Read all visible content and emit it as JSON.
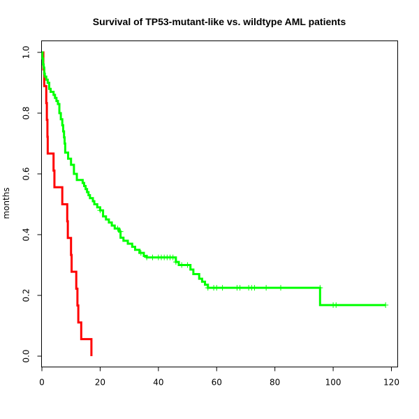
{
  "chart_data": {
    "type": "line",
    "title": "Survival of TP53-mutant-like vs. wildtype AML patients",
    "xlabel": "",
    "ylabel": "months",
    "xlim": [
      0,
      120
    ],
    "ylim": [
      0,
      1
    ],
    "xticks": [
      0,
      20,
      40,
      60,
      80,
      100,
      120
    ],
    "yticks": [
      0.0,
      0.2,
      0.4,
      0.6,
      0.8,
      1.0
    ],
    "xtick_labels": [
      "0",
      "20",
      "40",
      "60",
      "80",
      "100",
      "120"
    ],
    "ytick_labels": [
      "0.0",
      "0.2",
      "0.4",
      "0.6",
      "0.8",
      "1.0"
    ],
    "grid": false,
    "legend": false,
    "series": [
      {
        "color": "#ff0000",
        "step": [
          [
            0,
            1.0
          ],
          [
            0.5,
            0.944
          ],
          [
            0.8,
            0.889
          ],
          [
            1.5,
            0.833
          ],
          [
            1.7,
            0.778
          ],
          [
            1.9,
            0.722
          ],
          [
            2.0,
            0.667
          ],
          [
            4.0,
            0.611
          ],
          [
            4.3,
            0.556
          ],
          [
            7.0,
            0.5
          ],
          [
            8.7,
            0.444
          ],
          [
            8.9,
            0.389
          ],
          [
            10.0,
            0.333
          ],
          [
            10.2,
            0.278
          ],
          [
            11.8,
            0.222
          ],
          [
            12.2,
            0.167
          ],
          [
            12.5,
            0.111
          ],
          [
            13.5,
            0.056
          ],
          [
            17.0,
            0.0
          ]
        ],
        "end_x": 17.0,
        "censor": []
      },
      {
        "color": "#00ff00",
        "step": [
          [
            0,
            1.0
          ],
          [
            0.2,
            0.98
          ],
          [
            0.4,
            0.96
          ],
          [
            0.6,
            0.95
          ],
          [
            0.8,
            0.93
          ],
          [
            1.0,
            0.92
          ],
          [
            1.5,
            0.91
          ],
          [
            2.0,
            0.9
          ],
          [
            2.5,
            0.88
          ],
          [
            3.0,
            0.87
          ],
          [
            4.0,
            0.86
          ],
          [
            4.5,
            0.85
          ],
          [
            5.0,
            0.84
          ],
          [
            5.5,
            0.83
          ],
          [
            6.0,
            0.8
          ],
          [
            6.5,
            0.78
          ],
          [
            7.0,
            0.76
          ],
          [
            7.3,
            0.74
          ],
          [
            7.6,
            0.72
          ],
          [
            7.8,
            0.7
          ],
          [
            8.0,
            0.67
          ],
          [
            9.0,
            0.65
          ],
          [
            10.0,
            0.63
          ],
          [
            11.0,
            0.6
          ],
          [
            12.0,
            0.58
          ],
          [
            14.0,
            0.57
          ],
          [
            14.5,
            0.56
          ],
          [
            15.0,
            0.55
          ],
          [
            15.5,
            0.54
          ],
          [
            16.0,
            0.53
          ],
          [
            16.5,
            0.52
          ],
          [
            17.5,
            0.51
          ],
          [
            18.0,
            0.5
          ],
          [
            19.0,
            0.49
          ],
          [
            20.0,
            0.48
          ],
          [
            21.0,
            0.46
          ],
          [
            22.0,
            0.45
          ],
          [
            23.0,
            0.44
          ],
          [
            24.0,
            0.43
          ],
          [
            25.0,
            0.42
          ],
          [
            26.5,
            0.41
          ],
          [
            27.0,
            0.39
          ],
          [
            28.0,
            0.38
          ],
          [
            29.5,
            0.37
          ],
          [
            31.0,
            0.36
          ],
          [
            32.0,
            0.35
          ],
          [
            33.5,
            0.34
          ],
          [
            35.0,
            0.33
          ],
          [
            36.0,
            0.325
          ],
          [
            46.0,
            0.31
          ],
          [
            47.0,
            0.3
          ],
          [
            51.0,
            0.285
          ],
          [
            52.0,
            0.27
          ],
          [
            54.0,
            0.255
          ],
          [
            55.0,
            0.245
          ],
          [
            56.0,
            0.235
          ],
          [
            57.0,
            0.225
          ],
          [
            95.5,
            0.168
          ]
        ],
        "end_x": 118.0,
        "censor": [
          [
            20,
            0.48
          ],
          [
            26,
            0.42
          ],
          [
            27,
            0.41
          ],
          [
            34,
            0.34
          ],
          [
            36,
            0.325
          ],
          [
            38,
            0.325
          ],
          [
            40,
            0.325
          ],
          [
            41,
            0.325
          ],
          [
            42,
            0.325
          ],
          [
            43,
            0.325
          ],
          [
            44,
            0.325
          ],
          [
            45,
            0.325
          ],
          [
            46,
            0.31
          ],
          [
            48,
            0.3
          ],
          [
            50,
            0.3
          ],
          [
            57,
            0.225
          ],
          [
            59,
            0.225
          ],
          [
            60,
            0.225
          ],
          [
            62,
            0.225
          ],
          [
            67,
            0.225
          ],
          [
            68,
            0.225
          ],
          [
            71,
            0.225
          ],
          [
            72,
            0.225
          ],
          [
            73,
            0.225
          ],
          [
            77,
            0.225
          ],
          [
            82,
            0.225
          ],
          [
            95.5,
            0.225
          ],
          [
            100,
            0.168
          ],
          [
            101,
            0.168
          ],
          [
            118,
            0.168
          ]
        ]
      }
    ]
  }
}
